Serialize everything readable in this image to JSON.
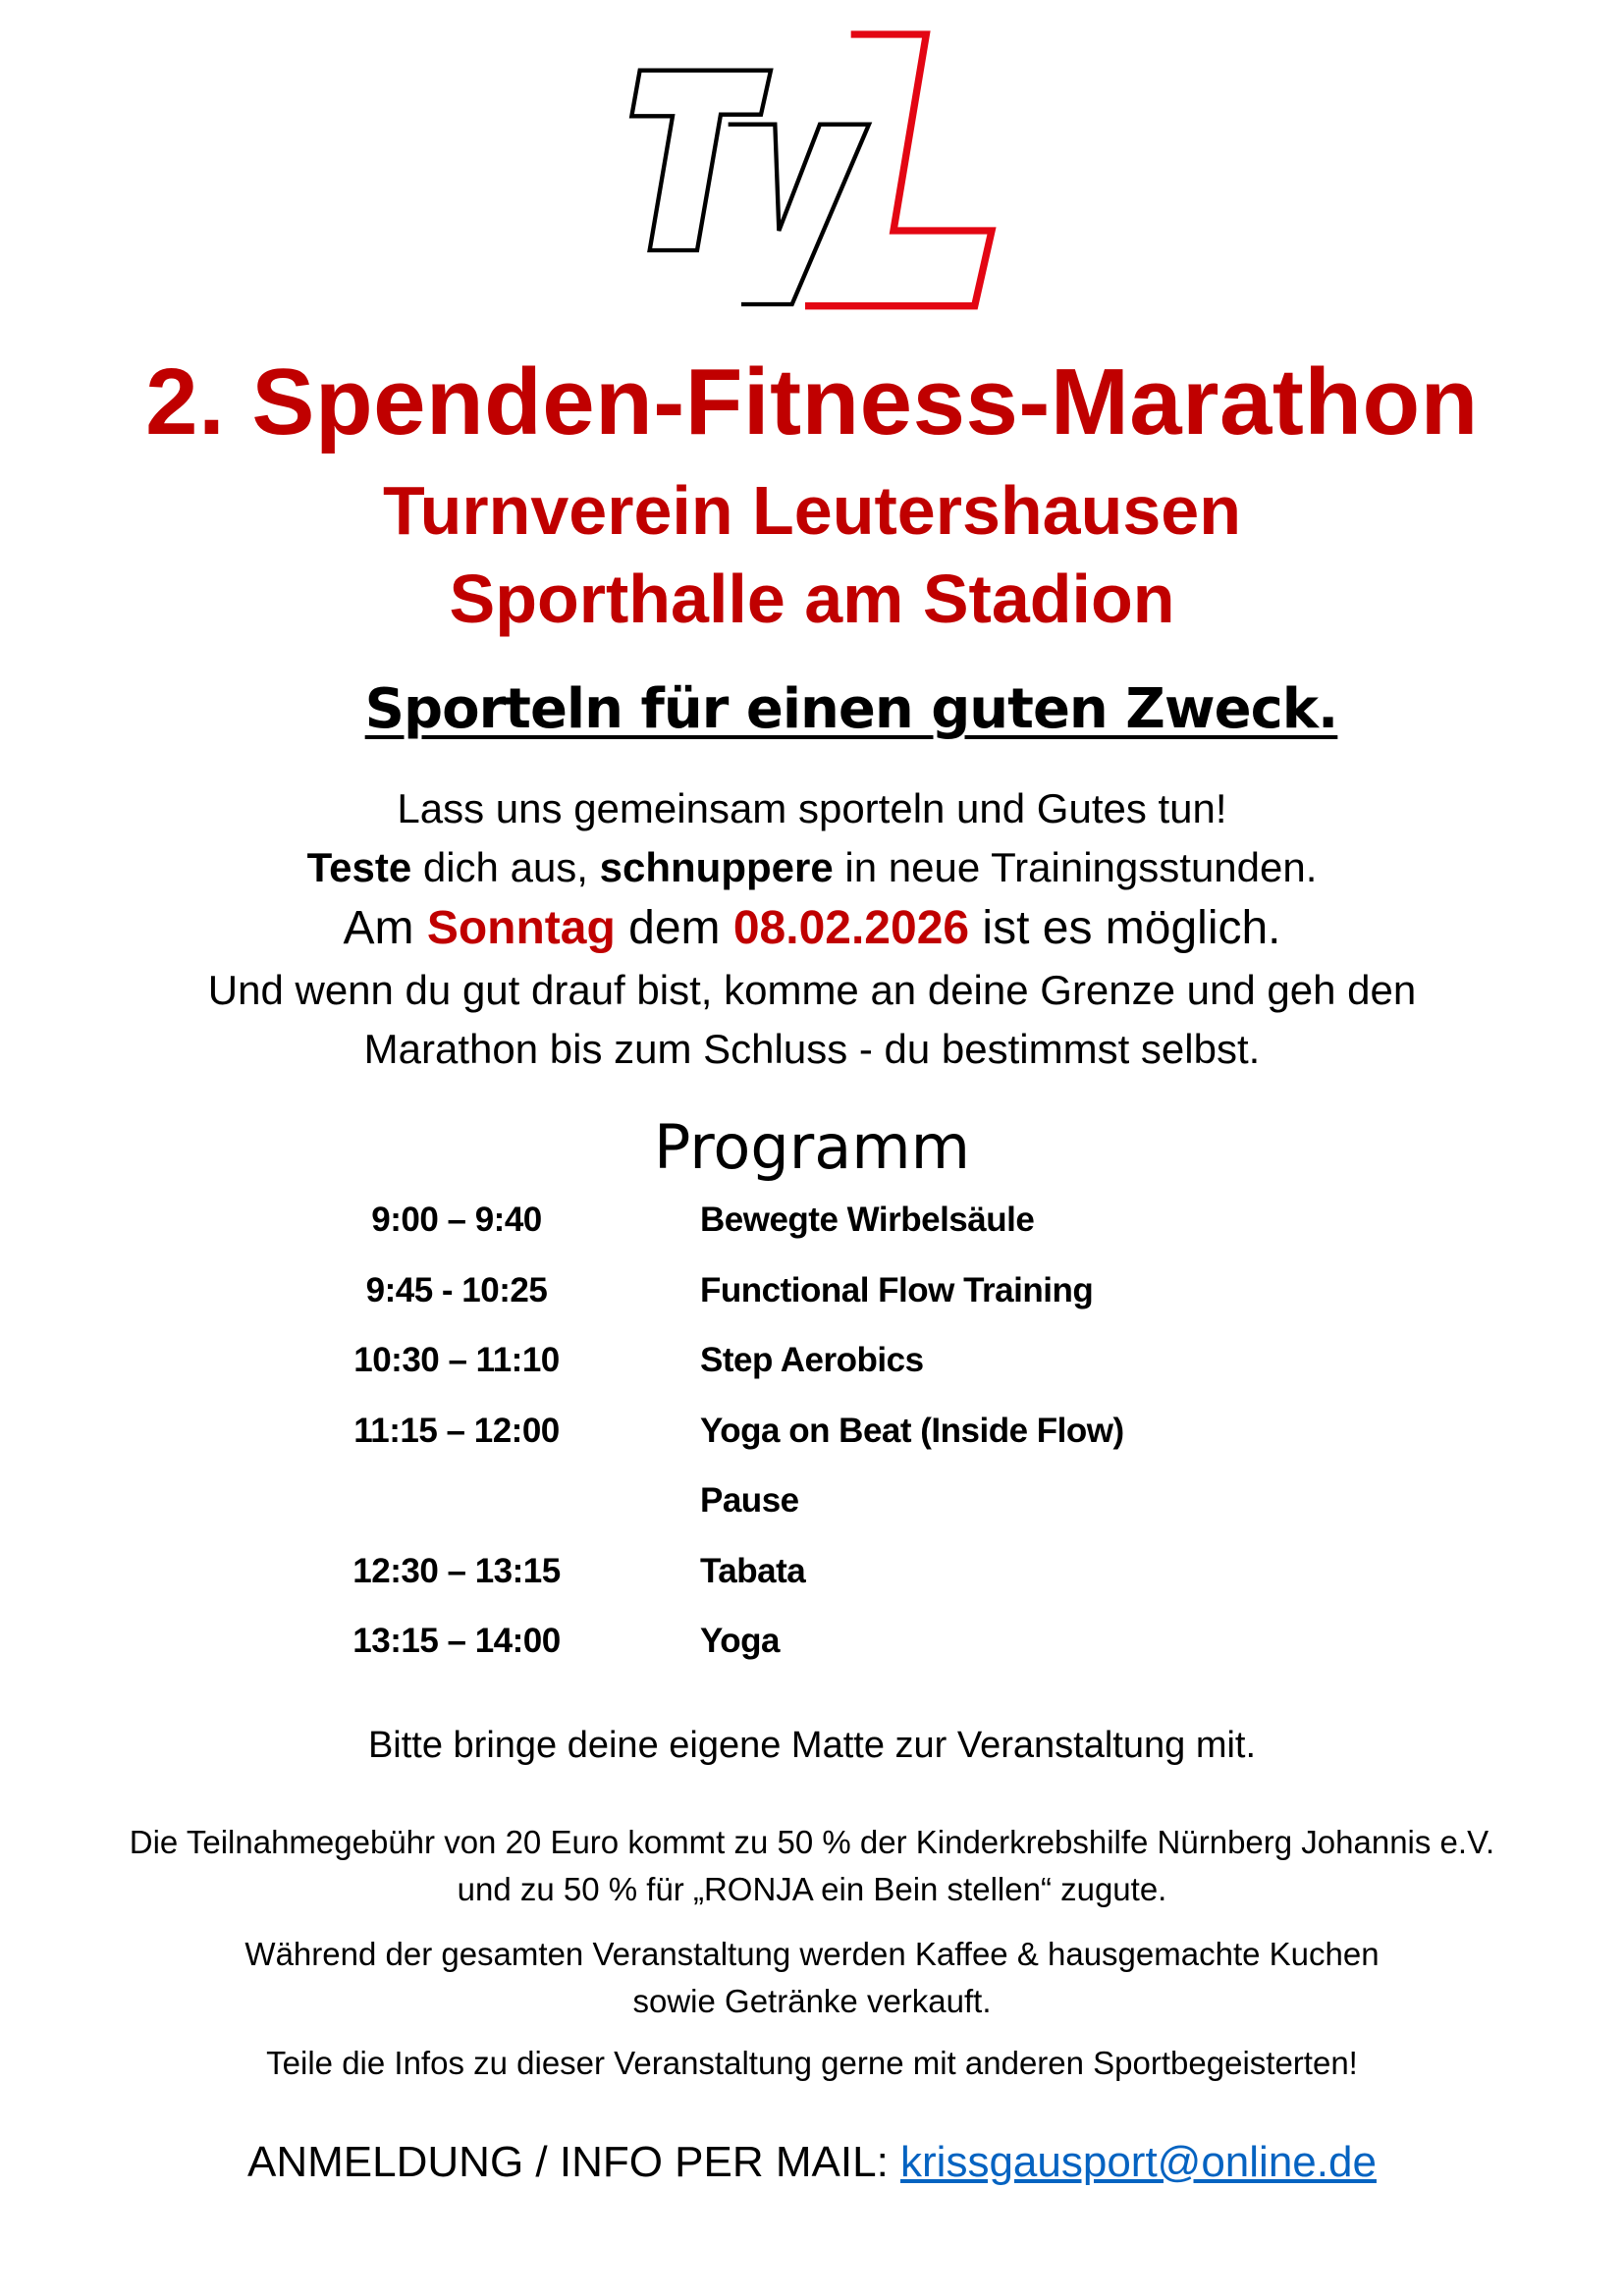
{
  "logo": {
    "text": "TVL",
    "colors": {
      "black": "#000000",
      "red": "#e30613"
    }
  },
  "title": "2. Spenden-Fitness-Marathon",
  "club": "Turnverein Leutershausen",
  "venue": "Sporthalle am Stadion",
  "slogan": "Sporteln für einen guten Zweck.",
  "intro": {
    "line1": "Lass uns gemeinsam sporteln und Gutes tun!",
    "line2_bold1": "Teste",
    "line2_text1": " dich aus, ",
    "line2_bold2": "schnuppere",
    "line2_text2": " in neue Trainingsstunden.",
    "line3_text1": "Am ",
    "line3_day": "Sonntag",
    "line3_text2": " dem ",
    "line3_date": "08.02.2026",
    "line3_text3": " ist es möglich.",
    "line4": "Und wenn du gut drauf bist, komme an deine Grenze und geh den",
    "line5": "Marathon bis zum Schluss - du bestimmst selbst."
  },
  "program": {
    "title": "Programm",
    "items": [
      {
        "time": "9:00 –  9:40",
        "activity": "Bewegte Wirbelsäule"
      },
      {
        "time": "9:45 - 10:25",
        "activity": "Functional Flow Training"
      },
      {
        "time": "10:30 – 11:10",
        "activity": "Step Aerobics"
      },
      {
        "time": "11:15 – 12:00",
        "activity": "Yoga on Beat (Inside Flow)"
      },
      {
        "time": "",
        "activity": "Pause"
      },
      {
        "time": "12:30 – 13:15",
        "activity": "Tabata"
      },
      {
        "time": "13:15 – 14:00",
        "activity": "Yoga"
      }
    ]
  },
  "mat_note": "Bitte bringe deine eigene Matte zur Veranstaltung mit.",
  "fee": {
    "line1": "Die Teilnahmegebühr von 20 Euro kommt zu 50 % der Kinderkrebshilfe Nürnberg Johannis e.V.",
    "line2": "und zu 50 % für „RONJA ein Bein stellen“ zugute."
  },
  "catering": {
    "line1": "Während der gesamten Veranstaltung werden Kaffee & hausgemachte Kuchen",
    "line2": "sowie Getränke verkauft."
  },
  "share": "Teile die Infos zu dieser Veranstaltung gerne mit anderen Sportbegeisterten!",
  "contact": {
    "label": "ANMELDUNG / INFO PER MAIL: ",
    "email": "krissgausport@online.de"
  },
  "colors": {
    "accent_red": "#c00000",
    "link": "#0563c1"
  }
}
